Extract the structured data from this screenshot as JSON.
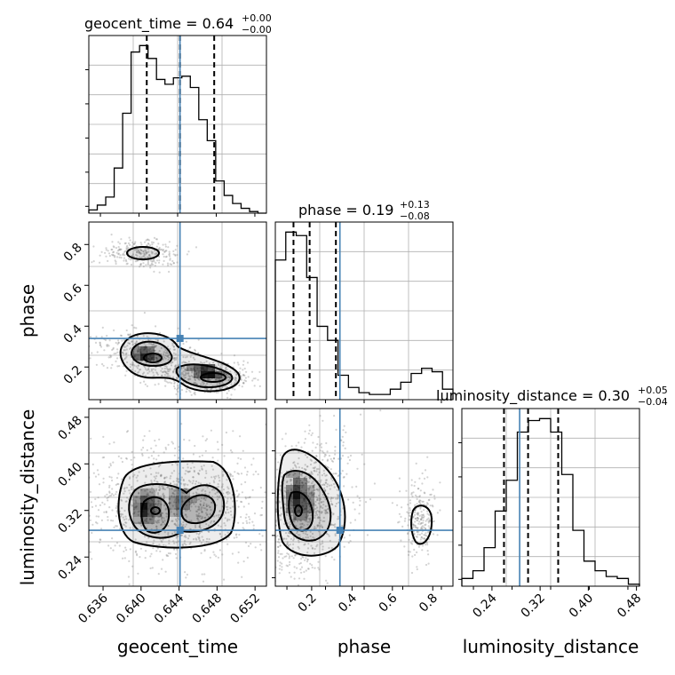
{
  "figure": {
    "type": "corner-plot",
    "colors": {
      "truth": "#4682b4",
      "line": "#000000",
      "grid": "#b0b0b0",
      "scatter": "#808080"
    }
  },
  "chart_data": [
    {
      "type": "bar",
      "panel": "geocent_time-hist",
      "title_main": "geocent_time = 0.64",
      "title_sup": "+0.00",
      "title_sub": "−0.00",
      "xlim": [
        0.6345,
        0.6532
      ],
      "bin_values": [
        2,
        5,
        10,
        28,
        62,
        100,
        104,
        96,
        83,
        80,
        84,
        85,
        78,
        58,
        45,
        20,
        11,
        6,
        3,
        1,
        0
      ],
      "quantiles": [
        0.6406,
        0.6441,
        0.6477
      ],
      "truth": 0.6441
    },
    {
      "type": "bar",
      "panel": "phase-hist",
      "title_main": "phase = 0.19",
      "title_sup": "+0.13",
      "title_sub": "−0.08",
      "xlim": [
        0.02,
        0.9
      ],
      "bin_values": [
        80,
        96,
        94,
        70,
        42,
        34,
        14,
        7,
        4,
        3,
        3,
        6,
        10,
        15,
        18,
        16,
        6
      ],
      "quantiles": [
        0.11,
        0.19,
        0.32
      ],
      "truth": 0.34
    },
    {
      "type": "bar",
      "panel": "luminosity_distance-hist",
      "title_main": "luminosity_distance = 0.30",
      "title_sup": "+0.05",
      "title_sub": "−0.04",
      "xlim": [
        0.19,
        0.485
      ],
      "bin_values": [
        4,
        8,
        20,
        39,
        55,
        80,
        86,
        87,
        80,
        58,
        29,
        13,
        8,
        5,
        4,
        1
      ],
      "quantiles": [
        0.26,
        0.3,
        0.35
      ],
      "truth": 0.286
    },
    {
      "type": "scatter",
      "panel": "geocent_time-vs-phase",
      "xlim": [
        0.6345,
        0.6532
      ],
      "ylim": [
        0.04,
        0.91
      ],
      "truth": [
        0.6441,
        0.34
      ],
      "y_ticks": [
        "0.2",
        "0.4",
        "0.6",
        "0.8"
      ],
      "y_tick_values": [
        0.2,
        0.4,
        0.6,
        0.8
      ]
    },
    {
      "type": "scatter",
      "panel": "geocent_time-vs-luminosity_distance",
      "xlim": [
        0.6345,
        0.6532
      ],
      "ylim": [
        0.19,
        0.495
      ],
      "truth": [
        0.6441,
        0.286
      ],
      "x_ticks": [
        "0.636",
        "0.640",
        "0.644",
        "0.648",
        "0.652"
      ],
      "x_tick_values": [
        0.636,
        0.64,
        0.644,
        0.648,
        0.652
      ],
      "y_ticks": [
        "0.24",
        "0.32",
        "0.40",
        "0.48"
      ],
      "y_tick_values": [
        0.24,
        0.32,
        0.4,
        0.48
      ]
    },
    {
      "type": "scatter",
      "panel": "phase-vs-luminosity_distance",
      "xlim": [
        0.02,
        0.9
      ],
      "ylim": [
        0.19,
        0.495
      ],
      "truth": [
        0.34,
        0.286
      ],
      "x_ticks": [
        "0.2",
        "0.4",
        "0.6",
        "0.8"
      ],
      "x_tick_values": [
        0.2,
        0.4,
        0.6,
        0.8
      ]
    }
  ],
  "axis_labels": {
    "x_col1": "geocent_time",
    "x_col2": "phase",
    "x_col3": "luminosity_distance",
    "y_row2": "phase",
    "y_row3": "luminosity_distance"
  },
  "lumdist_x_ticks": [
    "0.24",
    "0.32",
    "0.40",
    "0.48"
  ],
  "lumdist_x_tick_values": [
    0.24,
    0.32,
    0.4,
    0.48
  ]
}
